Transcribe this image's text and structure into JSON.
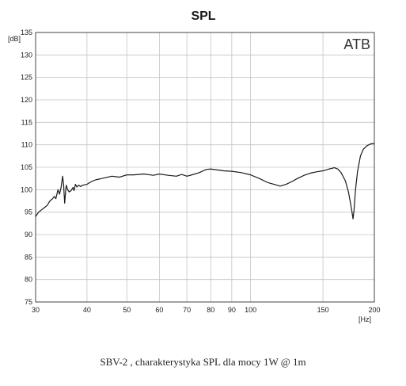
{
  "chart_data": {
    "type": "line",
    "title": "SPL",
    "watermark": "ATB",
    "ylabel": "[dB]",
    "xlabel": "[Hz]",
    "x_scale": "log",
    "xlim": [
      30,
      200
    ],
    "ylim": [
      75,
      135
    ],
    "grid": true,
    "x_ticks": [
      30,
      40,
      50,
      60,
      70,
      80,
      90,
      100,
      150,
      200
    ],
    "y_ticks": [
      75,
      80,
      85,
      90,
      95,
      100,
      105,
      110,
      115,
      120,
      125,
      130,
      135
    ],
    "series": [
      {
        "points": [
          [
            30,
            94.0
          ],
          [
            30.5,
            95.0
          ],
          [
            31,
            95.5
          ],
          [
            31.5,
            96.0
          ],
          [
            32,
            96.5
          ],
          [
            32.5,
            97.5
          ],
          [
            33,
            98.0
          ],
          [
            33.3,
            98.5
          ],
          [
            33.6,
            98.0
          ],
          [
            34,
            100.0
          ],
          [
            34.3,
            99.0
          ],
          [
            34.6,
            100.5
          ],
          [
            34.9,
            103.0
          ],
          [
            35.1,
            101.0
          ],
          [
            35.3,
            97.0
          ],
          [
            35.6,
            101.0
          ],
          [
            35.9,
            100.0
          ],
          [
            36.2,
            99.5
          ],
          [
            36.6,
            99.8
          ],
          [
            37,
            100.5
          ],
          [
            37.2,
            99.8
          ],
          [
            37.5,
            101.2
          ],
          [
            37.8,
            100.6
          ],
          [
            38.2,
            101.0
          ],
          [
            38.6,
            100.7
          ],
          [
            39,
            101.0
          ],
          [
            40,
            101.2
          ],
          [
            41,
            101.8
          ],
          [
            42,
            102.2
          ],
          [
            44,
            102.6
          ],
          [
            46,
            103.0
          ],
          [
            48,
            102.8
          ],
          [
            50,
            103.3
          ],
          [
            52,
            103.3
          ],
          [
            55,
            103.5
          ],
          [
            58,
            103.2
          ],
          [
            60,
            103.5
          ],
          [
            63,
            103.2
          ],
          [
            66,
            103.0
          ],
          [
            68,
            103.4
          ],
          [
            70,
            103.0
          ],
          [
            72,
            103.3
          ],
          [
            75,
            103.8
          ],
          [
            78,
            104.5
          ],
          [
            80,
            104.6
          ],
          [
            83,
            104.4
          ],
          [
            86,
            104.2
          ],
          [
            90,
            104.1
          ],
          [
            95,
            103.8
          ],
          [
            100,
            103.3
          ],
          [
            105,
            102.5
          ],
          [
            110,
            101.6
          ],
          [
            115,
            101.1
          ],
          [
            118,
            100.8
          ],
          [
            122,
            101.2
          ],
          [
            126,
            101.8
          ],
          [
            130,
            102.5
          ],
          [
            135,
            103.2
          ],
          [
            140,
            103.7
          ],
          [
            145,
            104.0
          ],
          [
            150,
            104.2
          ],
          [
            155,
            104.6
          ],
          [
            160,
            104.9
          ],
          [
            163,
            104.6
          ],
          [
            166,
            103.8
          ],
          [
            170,
            102.0
          ],
          [
            173,
            99.5
          ],
          [
            175,
            97.0
          ],
          [
            176.5,
            95.0
          ],
          [
            177.5,
            93.5
          ],
          [
            178.5,
            95.5
          ],
          [
            180,
            100.0
          ],
          [
            182,
            104.0
          ],
          [
            185,
            107.5
          ],
          [
            188,
            109.0
          ],
          [
            192,
            109.8
          ],
          [
            196,
            110.2
          ],
          [
            200,
            110.3
          ]
        ]
      }
    ]
  },
  "caption": "SBV-2 , charakterystyka SPL dla mocy  1W @ 1m"
}
